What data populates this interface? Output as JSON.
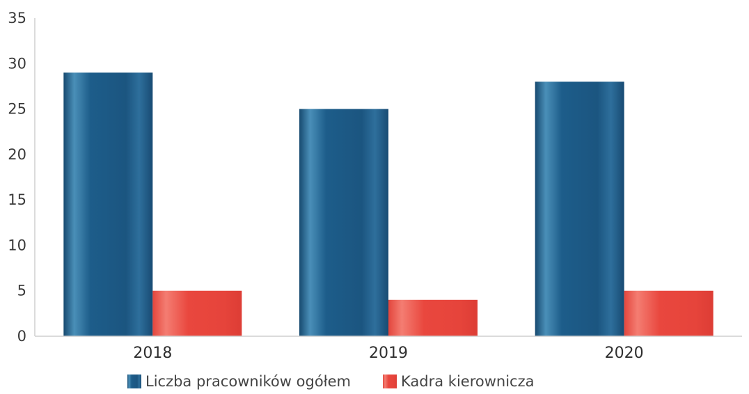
{
  "chart_data": {
    "type": "bar",
    "categories": [
      "2018",
      "2019",
      "2020"
    ],
    "series": [
      {
        "name": "Liczba pracowników ogółem",
        "color": "#1f5f8b",
        "values": [
          29,
          25,
          28
        ]
      },
      {
        "name": "Kadra kierownicza",
        "color": "#e8473f",
        "values": [
          5,
          4,
          5
        ]
      }
    ],
    "title": "",
    "xlabel": "",
    "ylabel": "",
    "ylim": [
      0,
      35
    ],
    "yticks": [
      0,
      5,
      10,
      15,
      20,
      25,
      30,
      35
    ],
    "grid": false,
    "legend_position": "bottom-center"
  }
}
